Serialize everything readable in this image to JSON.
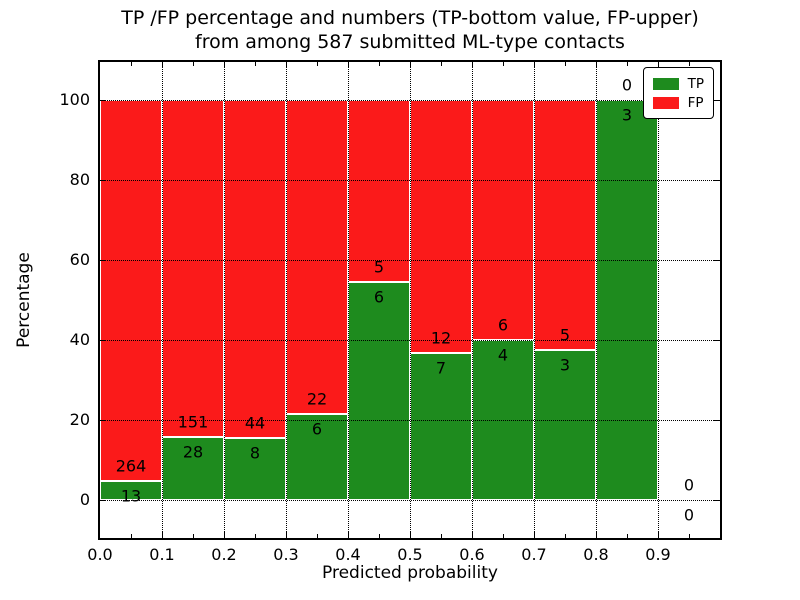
{
  "chart_data": {
    "type": "bar",
    "stacked": true,
    "title_line1": "TP /FP percentage and numbers (TP-bottom value, FP-upper)",
    "title_line2": "from among 587 submitted ML-type contacts",
    "xlabel": "Predicted probability",
    "ylabel": "Percentage",
    "total_contacts": 587,
    "xlim": [
      0.0,
      1.0
    ],
    "ylim": [
      -9.5,
      109.5
    ],
    "bin_width": 0.1,
    "bin_starts": [
      0.0,
      0.1,
      0.2,
      0.3,
      0.4,
      0.5,
      0.6,
      0.7,
      0.8,
      0.9
    ],
    "xtick_labels": [
      "0.0",
      "0.1",
      "0.2",
      "0.3",
      "0.4",
      "0.5",
      "0.6",
      "0.7",
      "0.8",
      "0.9"
    ],
    "xtick_minor_step": 0.05,
    "ytick_values": [
      0,
      20,
      40,
      60,
      80,
      100
    ],
    "grid": true,
    "grid_style": "dotted",
    "legend_position": "upper right",
    "series": [
      {
        "name": "TP",
        "color": "#1e8b1e",
        "counts": [
          13,
          28,
          8,
          6,
          6,
          7,
          4,
          3,
          3,
          0
        ]
      },
      {
        "name": "FP",
        "color": "#fb1a1a",
        "counts": [
          264,
          151,
          44,
          22,
          5,
          12,
          6,
          5,
          0,
          0
        ]
      }
    ],
    "tp_percent_of_bin": [
      4.7,
      15.6,
      15.4,
      21.4,
      54.5,
      36.8,
      40.0,
      37.5,
      100.0,
      0.0
    ]
  }
}
